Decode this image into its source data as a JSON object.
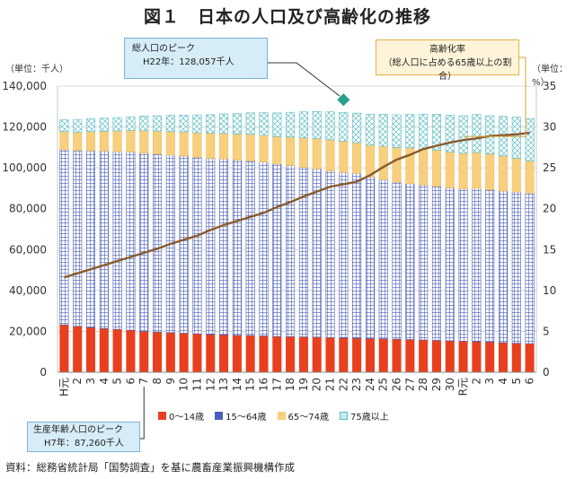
{
  "title": "図１　日本の人口及び高齢化の推移",
  "left_unit": "（単位：千人）",
  "right_unit": "（単位：%）",
  "callout_total": {
    "line1": "総人口のピーク",
    "line2": "H22年：128,057千人"
  },
  "callout_working": {
    "line1": "生産年齢人口のピーク",
    "line2": "H7年：87,260千人"
  },
  "callout_aging": {
    "line1": "高齢化率",
    "line2": "（総人口に占める65歳以上の割合）"
  },
  "source": "資料：総務省統計局「国勢調査」を基に農畜産業振興機構作成",
  "colors": {
    "age0_14": "#e8401e",
    "age15_64": "#4a5fb8",
    "age65_74": "#f8cf7e",
    "age75plus": "#c6ecf0",
    "line": "#8a5a2c",
    "marker": "#2aa08c"
  },
  "chart_data": {
    "type": "bar",
    "stacked": true,
    "categories": [
      "H元",
      "2",
      "3",
      "4",
      "5",
      "6",
      "7",
      "8",
      "9",
      "10",
      "11",
      "12",
      "13",
      "14",
      "15",
      "16",
      "17",
      "18",
      "19",
      "20",
      "21",
      "22",
      "23",
      "24",
      "25",
      "26",
      "27",
      "28",
      "29",
      "30",
      "R元",
      "2",
      "3",
      "4",
      "5",
      "6"
    ],
    "series": [
      {
        "name": "0～14歳",
        "values": [
          23200,
          22500,
          21900,
          21400,
          21000,
          20600,
          20000,
          19700,
          19400,
          19100,
          18800,
          18500,
          18300,
          18100,
          18000,
          17800,
          17500,
          17400,
          17300,
          17200,
          17000,
          16800,
          16700,
          16500,
          16400,
          16200,
          16000,
          15800,
          15600,
          15400,
          15200,
          15000,
          14800,
          14500,
          14200,
          14000
        ]
      },
      {
        "name": "15～64歳",
        "values": [
          85700,
          86000,
          86500,
          86800,
          87000,
          87200,
          87260,
          87100,
          86900,
          86700,
          86400,
          86200,
          86100,
          85700,
          85400,
          85100,
          84400,
          83800,
          83000,
          82300,
          81500,
          81000,
          80600,
          79000,
          77900,
          76800,
          76300,
          75800,
          75400,
          74800,
          74500,
          75100,
          74500,
          74200,
          74000,
          73700
        ]
      },
      {
        "name": "65～74歳",
        "values": [
          8800,
          9000,
          9300,
          9700,
          10100,
          10500,
          10900,
          11200,
          11500,
          11800,
          12000,
          12300,
          12500,
          12800,
          13000,
          13000,
          13400,
          13900,
          14400,
          14900,
          15200,
          15300,
          15000,
          15600,
          16300,
          17000,
          17500,
          17700,
          17700,
          17600,
          17400,
          17400,
          17500,
          17100,
          16500,
          15600
        ]
      },
      {
        "name": "75歳以上",
        "values": [
          5800,
          6000,
          6200,
          6400,
          6500,
          6700,
          7200,
          7500,
          7900,
          8200,
          8700,
          9000,
          9500,
          10000,
          10500,
          11100,
          11600,
          12100,
          12700,
          13200,
          13700,
          14000,
          14500,
          15200,
          15600,
          16000,
          16300,
          17000,
          17500,
          18000,
          18400,
          18600,
          18700,
          19400,
          20100,
          20800
        ]
      }
    ],
    "line": {
      "name": "高齢化率",
      "axis": "right",
      "values": [
        11.6,
        12.1,
        12.6,
        13.1,
        13.6,
        14.1,
        14.6,
        15.1,
        15.7,
        16.2,
        16.7,
        17.4,
        18.0,
        18.5,
        19.0,
        19.5,
        20.2,
        20.8,
        21.5,
        22.1,
        22.7,
        23.0,
        23.3,
        24.1,
        25.1,
        26.0,
        26.6,
        27.3,
        27.7,
        28.1,
        28.4,
        28.6,
        28.9,
        29.0,
        29.1,
        29.3
      ]
    },
    "marker": {
      "category_index": 21,
      "value": 128057
    },
    "ylim_left": [
      0,
      140000
    ],
    "yticks_left": [
      "0",
      "20,000",
      "40,000",
      "60,000",
      "80,000",
      "100,000",
      "120,000",
      "140,000"
    ],
    "ylim_right": [
      0,
      35
    ],
    "yticks_right": [
      "0",
      "5",
      "10",
      "15",
      "20",
      "25",
      "30",
      "35"
    ],
    "grid": true,
    "legend_position": "bottom"
  }
}
